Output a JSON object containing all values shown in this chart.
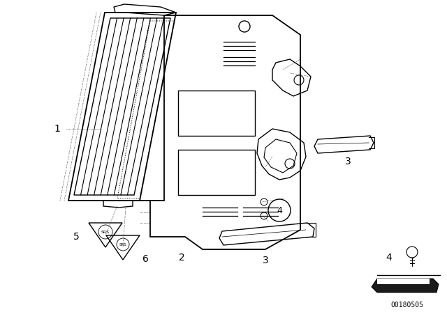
{
  "background_color": "#ffffff",
  "line_color": "#000000",
  "part_number_text": "00180505",
  "fig_width": 6.4,
  "fig_height": 4.48,
  "dpi": 100
}
